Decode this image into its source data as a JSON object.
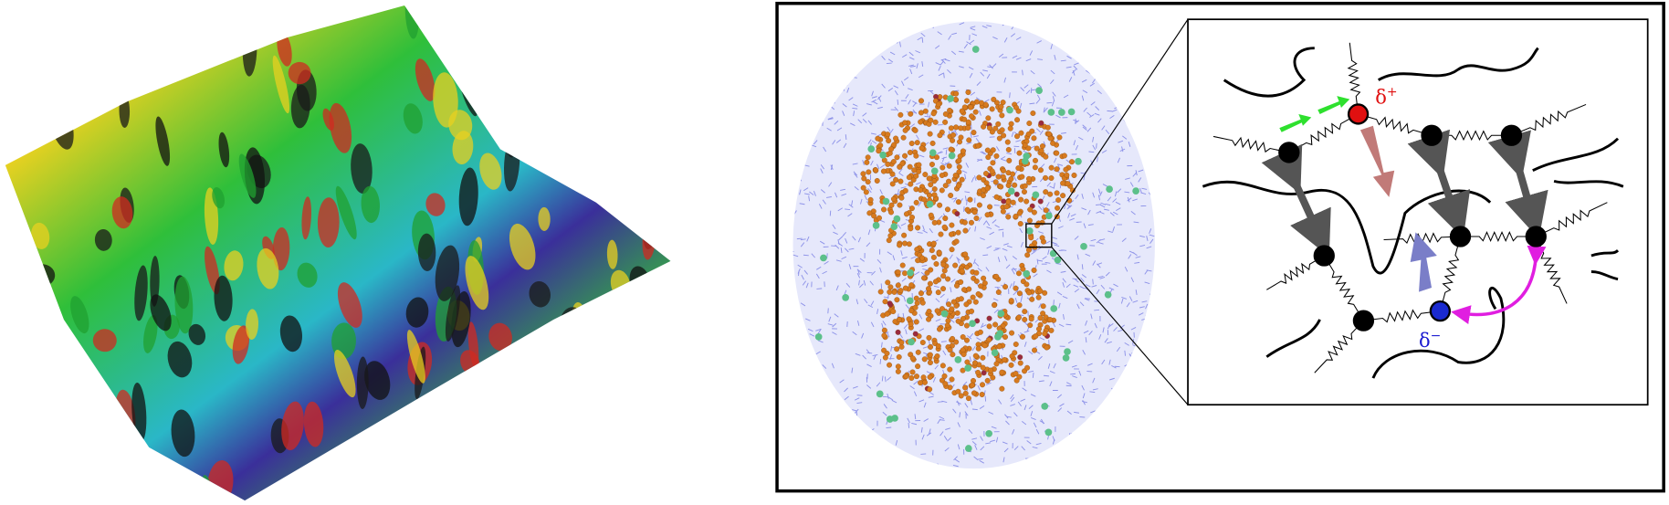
{
  "annotations": [
    {
      "base": "δ",
      "sup": "+"
    },
    {
      "base": "δ",
      "sup": "−"
    }
  ]
}
